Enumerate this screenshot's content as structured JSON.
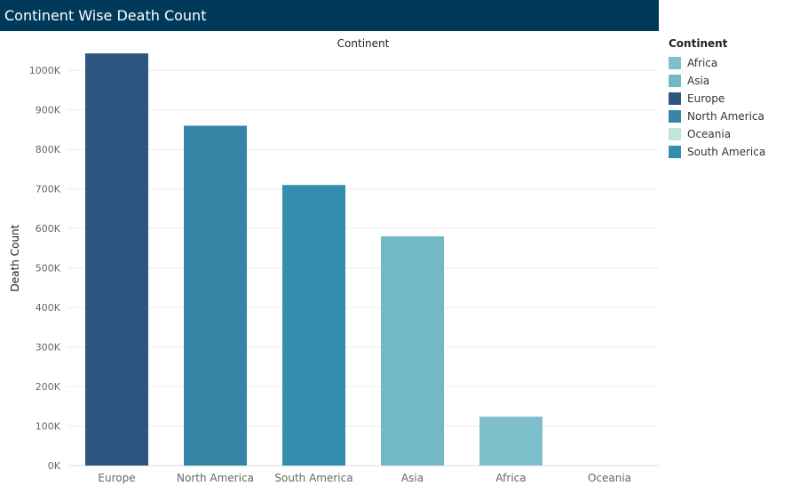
{
  "header": {
    "title": "Continent Wise Death Count"
  },
  "legend": {
    "title": "Continent",
    "items": [
      {
        "label": "Africa",
        "color": "#7dc0cb"
      },
      {
        "label": "Asia",
        "color": "#73b8c5"
      },
      {
        "label": "Europe",
        "color": "#2d5680"
      },
      {
        "label": "North America",
        "color": "#3585a7"
      },
      {
        "label": "Oceania",
        "color": "#c1e5da"
      },
      {
        "label": "South America",
        "color": "#358db0"
      }
    ]
  },
  "chart_data": {
    "type": "bar",
    "title": "Continent",
    "xlabel": "",
    "ylabel": "Death Count",
    "categories": [
      "Europe",
      "North America",
      "South America",
      "Asia",
      "Africa",
      "Oceania"
    ],
    "values": [
      1043000,
      860000,
      710000,
      580000,
      124000,
      1000
    ],
    "colors": [
      "#2d5680",
      "#3585a7",
      "#358db0",
      "#73b8c5",
      "#7dc0cb",
      "#c1e5da"
    ],
    "ylim": [
      0,
      1050000
    ],
    "yticks": [
      0,
      100000,
      200000,
      300000,
      400000,
      500000,
      600000,
      700000,
      800000,
      900000,
      1000000
    ],
    "ytick_labels": [
      "0K",
      "100K",
      "200K",
      "300K",
      "400K",
      "500K",
      "600K",
      "700K",
      "800K",
      "900K",
      "1000K"
    ],
    "grid": true,
    "legend_position": "right"
  }
}
